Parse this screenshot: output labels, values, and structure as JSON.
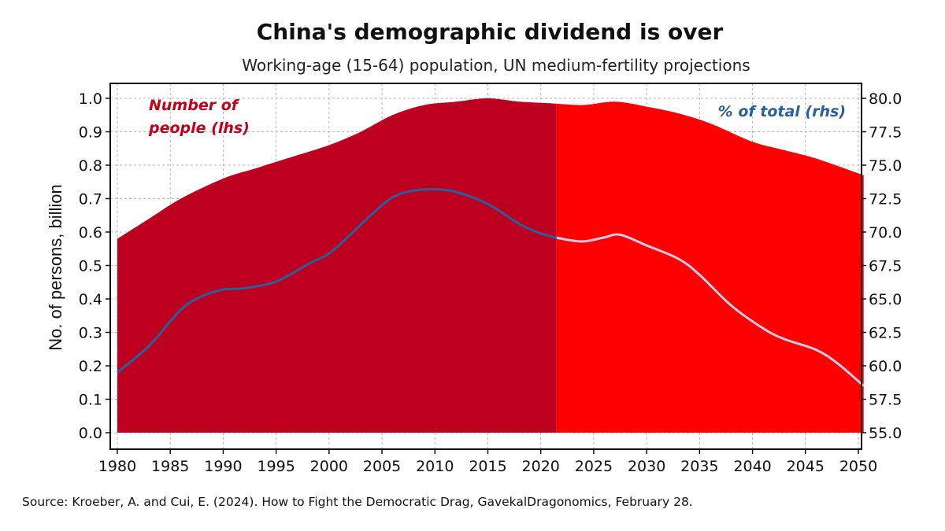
{
  "chart_data": {
    "type": "area",
    "title": "China's demographic dividend is over",
    "subtitle": "Working-age (15-64) population, UN medium-fertility projections",
    "ylabel": "No. of persons, billion",
    "xlabel": "",
    "xlim": [
      1980,
      2050.5
    ],
    "ylim": [
      0.0,
      1.05
    ],
    "y2lim": [
      55.0,
      81.25
    ],
    "split_year": 2021.5,
    "x_ticks": [
      1980,
      1985,
      1990,
      1995,
      2000,
      2005,
      2010,
      2015,
      2020,
      2025,
      2030,
      2035,
      2040,
      2045,
      2050
    ],
    "y_ticks": [
      "0.0",
      "0.1",
      "0.2",
      "0.3",
      "0.4",
      "0.5",
      "0.6",
      "0.7",
      "0.8",
      "0.9",
      "1.0"
    ],
    "y2_ticks": [
      "55.0",
      "57.5",
      "60.0",
      "62.5",
      "65.0",
      "67.5",
      "70.0",
      "72.5",
      "75.0",
      "77.5",
      "80.0"
    ],
    "grid": true,
    "annotations": {
      "people_line1": "Number of",
      "people_line2": "people (lhs)",
      "share": "% of total (rhs)"
    },
    "series": [
      {
        "name": "Number of people (lhs)",
        "axis": "left",
        "kind": "area",
        "x": [
          1980,
          1983,
          1986,
          1990,
          1993,
          1996,
          2000,
          2003,
          2006,
          2009,
          2012,
          2015,
          2018,
          2021,
          2024,
          2027,
          2030,
          2033,
          2036,
          2040,
          2043,
          2046,
          2050.5
        ],
        "values": [
          0.58,
          0.64,
          0.7,
          0.76,
          0.79,
          0.82,
          0.86,
          0.9,
          0.95,
          0.98,
          0.99,
          1.0,
          0.99,
          0.985,
          0.98,
          0.99,
          0.975,
          0.955,
          0.925,
          0.87,
          0.845,
          0.82,
          0.77
        ]
      },
      {
        "name": "% of total (rhs)",
        "axis": "right",
        "kind": "line",
        "x": [
          1980,
          1983,
          1986,
          1988,
          1990,
          1992,
          1995,
          1998,
          2000,
          2002,
          2004,
          2006,
          2008,
          2010,
          2012,
          2015,
          2018,
          2020,
          2022,
          2024,
          2026,
          2027.5,
          2030,
          2033,
          2035,
          2038,
          2041,
          2043,
          2046,
          2048,
          2050.5
        ],
        "values": [
          59.5,
          61.5,
          64.2,
          65.2,
          65.7,
          65.8,
          66.3,
          67.6,
          68.4,
          69.8,
          71.3,
          72.6,
          73.1,
          73.2,
          73.0,
          72.1,
          70.6,
          69.9,
          69.5,
          69.3,
          69.6,
          69.8,
          69.0,
          68.0,
          66.8,
          64.5,
          62.8,
          62.0,
          61.2,
          60.2,
          58.5
        ]
      }
    ],
    "colors": {
      "area_historical": "#be0020",
      "area_projection": "#ff0000",
      "line_historical": "#2a5f9e",
      "line_projection": "#c5cee3",
      "grid": "#b5b5b5"
    }
  },
  "source": "Source: Kroeber, A. and Cui, E. (2024). How to Fight the Democratic Drag, GavekalDragonomics, February 28."
}
